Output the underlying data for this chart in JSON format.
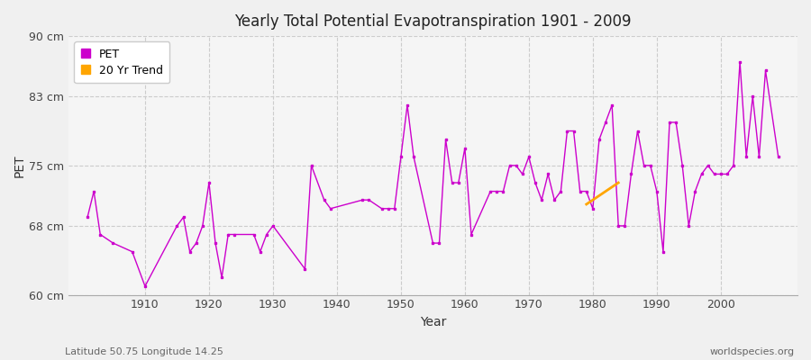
{
  "title": "Yearly Total Potential Evapotranspiration 1901 - 2009",
  "xlabel": "Year",
  "ylabel": "PET",
  "subtitle": "Latitude 50.75 Longitude 14.25",
  "watermark": "worldspecies.org",
  "bg_color": "#f0f0f0",
  "plot_bg_color": "#f5f5f5",
  "line_color": "#cc00cc",
  "trend_color": "#ffa500",
  "ylim": [
    60,
    90
  ],
  "yticks": [
    60,
    68,
    75,
    83,
    90
  ],
  "ytick_labels": [
    "60 cm",
    "68 cm",
    "75 cm",
    "83 cm",
    "90 cm"
  ],
  "years": [
    1901,
    1902,
    1903,
    1905,
    1908,
    1910,
    1915,
    1916,
    1917,
    1918,
    1919,
    1920,
    1921,
    1922,
    1923,
    1924,
    1927,
    1928,
    1929,
    1930,
    1935,
    1936,
    1938,
    1939,
    1944,
    1945,
    1947,
    1948,
    1949,
    1950,
    1951,
    1952,
    1955,
    1956,
    1957,
    1958,
    1959,
    1960,
    1961,
    1964,
    1965,
    1966,
    1967,
    1968,
    1969,
    1970,
    1971,
    1972,
    1973,
    1974,
    1975,
    1976,
    1977,
    1978,
    1979,
    1980,
    1981,
    1982,
    1983,
    1984,
    1985,
    1986,
    1987,
    1988,
    1989,
    1990,
    1991,
    1992,
    1993,
    1994,
    1995,
    1996,
    1997,
    1998,
    1999,
    2000,
    2001,
    2002,
    2003,
    2004,
    2005,
    2006,
    2007,
    2009
  ],
  "pet": [
    69,
    72,
    67,
    66,
    65,
    61,
    68,
    69,
    65,
    66,
    68,
    73,
    66,
    62,
    67,
    67,
    67,
    65,
    67,
    68,
    63,
    75,
    71,
    70,
    71,
    71,
    70,
    70,
    70,
    76,
    82,
    76,
    66,
    66,
    78,
    73,
    73,
    77,
    67,
    72,
    72,
    72,
    75,
    75,
    74,
    76,
    73,
    71,
    74,
    71,
    72,
    79,
    79,
    72,
    72,
    70,
    78,
    80,
    82,
    68,
    68,
    74,
    79,
    75,
    75,
    72,
    65,
    80,
    80,
    75,
    68,
    72,
    74,
    75,
    74,
    74,
    74,
    75,
    87,
    76,
    83,
    76,
    86,
    76
  ],
  "trend_years_x": [
    1979,
    1980,
    1981,
    1982,
    1983,
    1984
  ],
  "trend_values_y": [
    70.5,
    71.0,
    71.5,
    72.0,
    72.5,
    73.0
  ]
}
